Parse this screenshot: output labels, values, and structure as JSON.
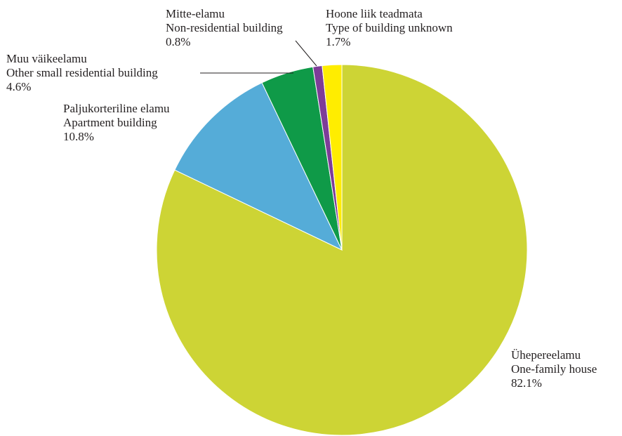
{
  "chart_data": {
    "type": "pie",
    "slices": [
      {
        "label_et": "Ühepereelamu",
        "label_en": "One-family house",
        "percent_text": "82.1%",
        "value": 82.1,
        "color": "#cdd435"
      },
      {
        "label_et": "Paljukorteriline elamu",
        "label_en": "Apartment building",
        "percent_text": "10.8%",
        "value": 10.8,
        "color": "#55acd8"
      },
      {
        "label_et": "Muu väikeelamu",
        "label_en": "Other small residential building",
        "percent_text": "4.6%",
        "value": 4.6,
        "color": "#0f9a48"
      },
      {
        "label_et": "Mitte-elamu",
        "label_en": "Non-residential building",
        "percent_text": "0.8%",
        "value": 0.8,
        "color": "#7d3c98"
      },
      {
        "label_et": "Hoone liik teadmata",
        "label_en": "Type of building unknown",
        "percent_text": "1.7%",
        "value": 1.7,
        "color": "#ffed00"
      }
    ],
    "start_angle": "12 o'clock",
    "direction": "clockwise"
  }
}
